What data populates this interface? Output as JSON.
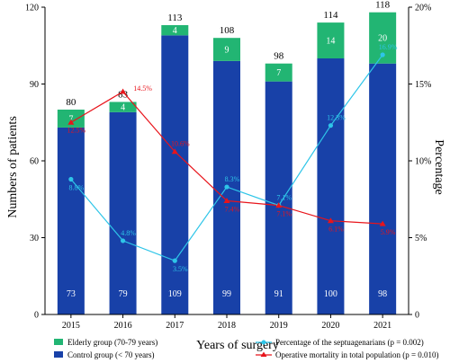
{
  "chart_data": {
    "type": "bar",
    "stacked": true,
    "categories": [
      "2015",
      "2016",
      "2017",
      "2018",
      "2019",
      "2020",
      "2021"
    ],
    "series": [
      {
        "name": "Control group (< 70 years)",
        "values": [
          73,
          79,
          109,
          99,
          91,
          100,
          98
        ],
        "color": "#1841a8"
      },
      {
        "name": "Elderly group (70-79 years)",
        "values": [
          7,
          4,
          4,
          9,
          7,
          14,
          20
        ],
        "color": "#22b573"
      }
    ],
    "totals": [
      80,
      83,
      113,
      108,
      98,
      114,
      118
    ],
    "line_series": [
      {
        "name": "Percentage of the septuagenarians (p = 0.002)",
        "values": [
          8.8,
          4.8,
          3.5,
          8.3,
          7.1,
          12.3,
          16.9
        ],
        "labels": [
          "8.8%",
          "4.8%",
          "3.5%",
          "8.3%",
          "7.1%",
          "12.3%",
          "16.9%"
        ],
        "color": "#2ec5e8",
        "axis": "right"
      },
      {
        "name": "Operative mortality in total population (p = 0.010)",
        "values": [
          12.5,
          14.5,
          10.6,
          7.4,
          7.1,
          6.1,
          5.9
        ],
        "labels": [
          "12.5%",
          "14.5%",
          "10.6%",
          "7.4%",
          "7.1%",
          "6.1%",
          "5.9%"
        ],
        "color": "#e8141b",
        "axis": "right"
      }
    ],
    "xlabel": "Years of surgery",
    "ylabel": "Numbers of patients",
    "y2label": "Percentage",
    "ylim": [
      0,
      120
    ],
    "yticks": [
      "0",
      "30",
      "60",
      "90",
      "120"
    ],
    "y2lim": [
      0,
      20
    ],
    "y2ticks": [
      "0",
      "5%",
      "10%",
      "15%",
      "20%"
    ],
    "legend_position": "bottom"
  }
}
